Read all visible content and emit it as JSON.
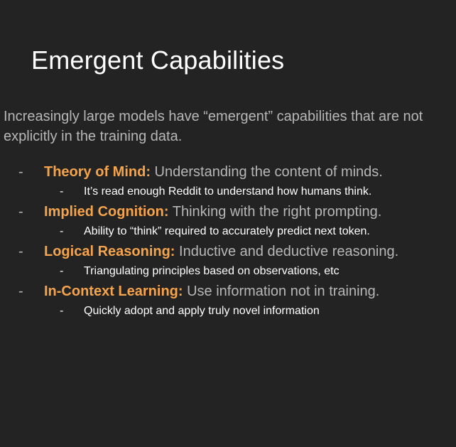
{
  "slide": {
    "title": "Emergent Capabilities",
    "intro": "Increasingly large models have “emergent” capabilities that are not explicitly in the training data.",
    "bullet_marker": "-",
    "items": [
      {
        "label": "Theory of Mind:",
        "description": " Understanding the content of minds.",
        "sub": "It’s read enough Reddit to understand how humans think."
      },
      {
        "label": "Implied Cognition:",
        "description": " Thinking with the right prompting.",
        "sub": "Ability to “think” required to accurately predict next token."
      },
      {
        "label": "Logical Reasoning:",
        "description": " Inductive and deductive reasoning.",
        "sub": "Triangulating principles based on observations, etc"
      },
      {
        "label": "In-Context Learning:",
        "description": " Use information not in training.",
        "sub": "Quickly adopt and apply truly novel information"
      }
    ]
  },
  "colors": {
    "background": "#232323",
    "title": "#ffffff",
    "body_text": "#b7b7b7",
    "accent": "#f6a44b",
    "sub_text": "#ffffff"
  }
}
